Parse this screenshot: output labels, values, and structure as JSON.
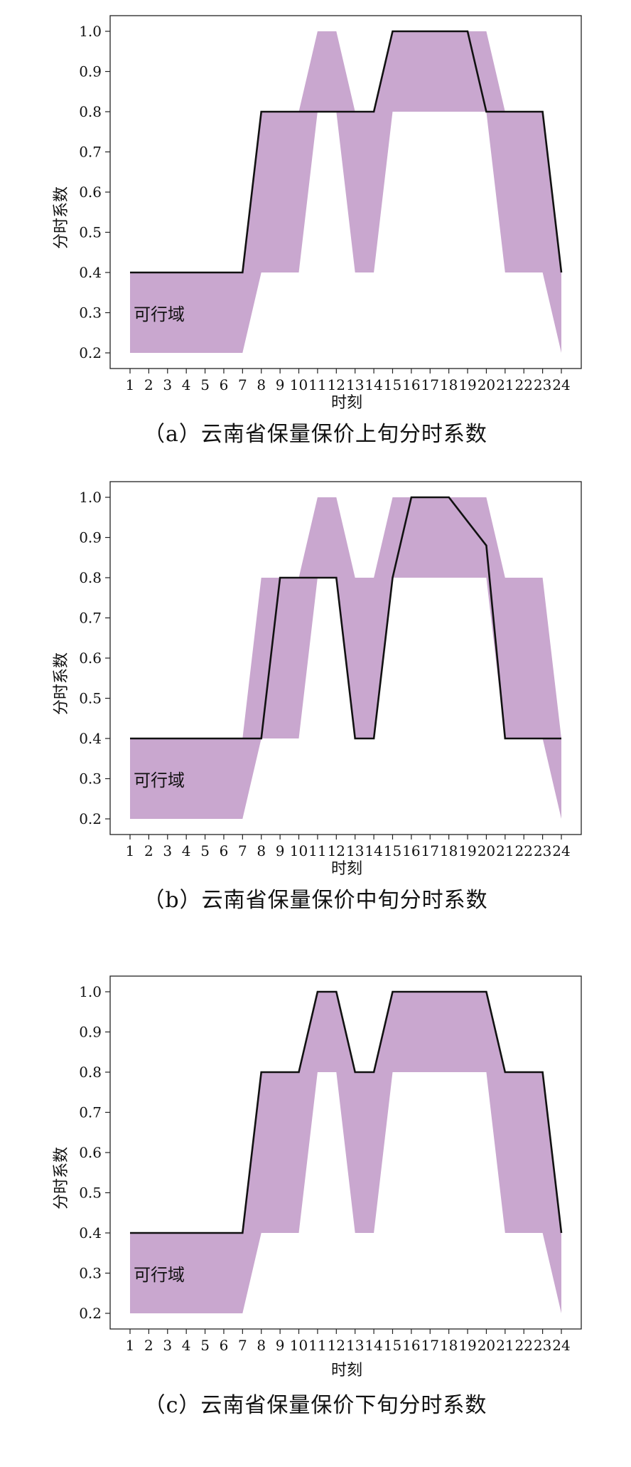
{
  "chart_data": [
    {
      "type": "area",
      "caption": "（a）云南省保量保价上旬分时系数",
      "xlabel": "时刻",
      "ylabel": "分时系数",
      "annotation": "可行域",
      "x": [
        1,
        2,
        3,
        4,
        5,
        6,
        7,
        8,
        9,
        10,
        11,
        12,
        13,
        14,
        15,
        16,
        17,
        18,
        19,
        20,
        21,
        22,
        23,
        24
      ],
      "ylim": [
        0.2,
        1.0
      ],
      "yticks": [
        "0.2",
        "0.3",
        "0.4",
        "0.5",
        "0.6",
        "0.7",
        "0.8",
        "0.9",
        "1.0"
      ],
      "band_upper": [
        0.4,
        0.4,
        0.4,
        0.4,
        0.4,
        0.4,
        0.4,
        0.8,
        0.8,
        0.8,
        1.0,
        1.0,
        0.8,
        0.8,
        1.0,
        1.0,
        1.0,
        1.0,
        1.0,
        1.0,
        0.8,
        0.8,
        0.8,
        0.4
      ],
      "band_lower": [
        0.2,
        0.2,
        0.2,
        0.2,
        0.2,
        0.2,
        0.2,
        0.4,
        0.4,
        0.4,
        0.8,
        0.8,
        0.4,
        0.4,
        0.8,
        0.8,
        0.8,
        0.8,
        0.8,
        0.8,
        0.4,
        0.4,
        0.4,
        0.2
      ],
      "series": [
        {
          "values": [
            0.4,
            0.4,
            0.4,
            0.4,
            0.4,
            0.4,
            0.4,
            0.8,
            0.8,
            0.8,
            0.8,
            0.8,
            0.8,
            0.8,
            1.0,
            1.0,
            1.0,
            1.0,
            1.0,
            0.8,
            0.8,
            0.8,
            0.8,
            0.4
          ]
        }
      ]
    },
    {
      "type": "area",
      "caption": "（b）云南省保量保价中旬分时系数",
      "xlabel": "时刻",
      "ylabel": "分时系数",
      "annotation": "可行域",
      "x": [
        1,
        2,
        3,
        4,
        5,
        6,
        7,
        8,
        9,
        10,
        11,
        12,
        13,
        14,
        15,
        16,
        17,
        18,
        19,
        20,
        21,
        22,
        23,
        24
      ],
      "ylim": [
        0.2,
        1.0
      ],
      "yticks": [
        "0.2",
        "0.3",
        "0.4",
        "0.5",
        "0.6",
        "0.7",
        "0.8",
        "0.9",
        "1.0"
      ],
      "band_upper": [
        0.4,
        0.4,
        0.4,
        0.4,
        0.4,
        0.4,
        0.4,
        0.8,
        0.8,
        0.8,
        1.0,
        1.0,
        0.8,
        0.8,
        1.0,
        1.0,
        1.0,
        1.0,
        1.0,
        1.0,
        0.8,
        0.8,
        0.8,
        0.4
      ],
      "band_lower": [
        0.2,
        0.2,
        0.2,
        0.2,
        0.2,
        0.2,
        0.2,
        0.4,
        0.4,
        0.4,
        0.8,
        0.8,
        0.4,
        0.4,
        0.8,
        0.8,
        0.8,
        0.8,
        0.8,
        0.8,
        0.4,
        0.4,
        0.4,
        0.2
      ],
      "series": [
        {
          "values": [
            0.4,
            0.4,
            0.4,
            0.4,
            0.4,
            0.4,
            0.4,
            0.4,
            0.8,
            0.8,
            0.8,
            0.8,
            0.4,
            0.4,
            0.8,
            1.0,
            1.0,
            1.0,
            0.94,
            0.88,
            0.4,
            0.4,
            0.4,
            0.4
          ]
        }
      ]
    },
    {
      "type": "area",
      "caption": "（c）云南省保量保价下旬分时系数",
      "xlabel": "时刻",
      "ylabel": "分时系数",
      "annotation": "可行域",
      "x": [
        1,
        2,
        3,
        4,
        5,
        6,
        7,
        8,
        9,
        10,
        11,
        12,
        13,
        14,
        15,
        16,
        17,
        18,
        19,
        20,
        21,
        22,
        23,
        24
      ],
      "ylim": [
        0.2,
        1.0
      ],
      "yticks": [
        "0.2",
        "0.3",
        "0.4",
        "0.5",
        "0.6",
        "0.7",
        "0.8",
        "0.9",
        "1.0"
      ],
      "band_upper": [
        0.4,
        0.4,
        0.4,
        0.4,
        0.4,
        0.4,
        0.4,
        0.8,
        0.8,
        0.8,
        1.0,
        1.0,
        0.8,
        0.8,
        1.0,
        1.0,
        1.0,
        1.0,
        1.0,
        1.0,
        0.8,
        0.8,
        0.8,
        0.4
      ],
      "band_lower": [
        0.2,
        0.2,
        0.2,
        0.2,
        0.2,
        0.2,
        0.2,
        0.4,
        0.4,
        0.4,
        0.8,
        0.8,
        0.4,
        0.4,
        0.8,
        0.8,
        0.8,
        0.8,
        0.8,
        0.8,
        0.4,
        0.4,
        0.4,
        0.2
      ],
      "series": [
        {
          "values": [
            0.4,
            0.4,
            0.4,
            0.4,
            0.4,
            0.4,
            0.4,
            0.8,
            0.8,
            0.8,
            1.0,
            1.0,
            0.8,
            0.8,
            1.0,
            1.0,
            1.0,
            1.0,
            1.0,
            1.0,
            0.8,
            0.8,
            0.8,
            0.4
          ]
        }
      ]
    }
  ],
  "colors": {
    "band": "#c9a7cf",
    "line": "#111111",
    "frame": "#222222"
  }
}
